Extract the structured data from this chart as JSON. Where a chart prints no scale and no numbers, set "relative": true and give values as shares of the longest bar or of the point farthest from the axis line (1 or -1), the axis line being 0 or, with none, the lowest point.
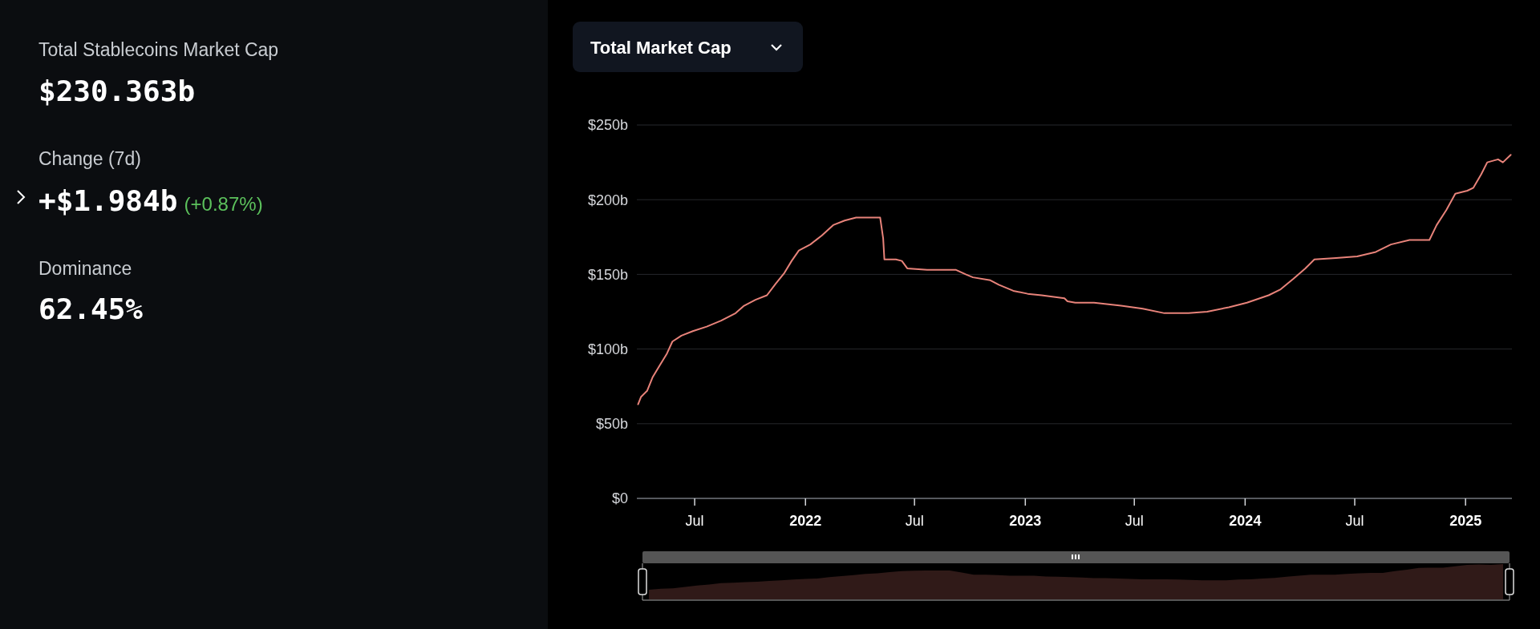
{
  "chart_data": [
    {
      "type": "other",
      "title": "Total Stablecoins Market Cap",
      "annotations": [
        "$230.363b",
        "Change (7d)",
        "+$1.984b",
        "(+0.87%)",
        "Dominance",
        "62.45%"
      ]
    },
    {
      "type": "line",
      "title": "Total Market Cap",
      "color": "#e8837a",
      "grid": "y",
      "x": [
        "2021-03-29",
        "2021-04-03",
        "2021-04-13",
        "2021-04-22",
        "2021-05-04",
        "2021-05-16",
        "2021-05-25",
        "2021-06-09",
        "2021-06-28",
        "2021-07-21",
        "2021-08-14",
        "2021-09-07",
        "2021-09-21",
        "2021-10-10",
        "2021-10-29",
        "2021-11-13",
        "2021-11-27",
        "2021-12-09",
        "2021-12-21",
        "2022-01-09",
        "2022-01-28",
        "2022-02-16",
        "2022-03-07",
        "2022-03-26",
        "2022-04-18",
        "2022-05-05",
        "2022-05-10",
        "2022-05-12",
        "2022-05-31",
        "2022-06-10",
        "2022-06-19",
        "2022-07-22",
        "2022-09-08",
        "2022-09-24",
        "2022-10-06",
        "2022-11-04",
        "2022-11-18",
        "2022-12-12",
        "2023-01-05",
        "2023-01-28",
        "2023-03-07",
        "2023-03-12",
        "2023-03-25",
        "2023-04-25",
        "2023-06-09",
        "2023-07-15",
        "2023-08-20",
        "2023-09-29",
        "2023-10-30",
        "2023-12-05",
        "2024-01-04",
        "2024-02-09",
        "2024-02-29",
        "2024-03-21",
        "2024-04-10",
        "2024-04-25",
        "2024-05-31",
        "2024-07-05",
        "2024-08-05",
        "2024-08-30",
        "2024-09-30",
        "2024-11-02",
        "2024-11-14",
        "2024-11-30",
        "2024-12-15",
        "2025-01-04",
        "2025-01-14",
        "2025-01-27",
        "2025-02-06",
        "2025-02-24",
        "2025-03-04",
        "2025-03-17"
      ],
      "values": [
        63,
        68,
        72,
        81,
        89,
        97,
        105,
        109,
        112,
        115,
        119,
        124,
        129,
        133,
        136,
        144,
        151,
        159,
        166,
        170,
        176,
        183,
        186,
        188,
        188,
        188,
        174,
        160,
        160,
        159,
        154,
        153,
        153,
        150,
        148,
        146,
        143,
        139,
        137,
        136,
        134,
        132,
        131,
        131,
        129,
        127,
        124,
        124,
        125,
        128,
        131,
        136,
        140,
        147,
        154,
        160,
        161,
        162,
        165,
        170,
        173,
        173,
        183,
        193,
        204,
        206,
        208,
        217,
        225,
        227,
        225,
        230
      ],
      "xlim": [
        "2021-03-27",
        "2025-03-19"
      ],
      "xticks": [
        {
          "value": "2021-07-01",
          "label": "Jul"
        },
        {
          "value": "2022-01-01",
          "label": "2022"
        },
        {
          "value": "2022-07-01",
          "label": "Jul"
        },
        {
          "value": "2023-01-01",
          "label": "2023"
        },
        {
          "value": "2023-07-01",
          "label": "Jul"
        },
        {
          "value": "2024-01-01",
          "label": "2024"
        },
        {
          "value": "2024-07-01",
          "label": "Jul"
        },
        {
          "value": "2025-01-01",
          "label": "2025"
        }
      ],
      "ylim": [
        0,
        250
      ],
      "yticks": [
        {
          "value": 0,
          "label": "$0"
        },
        {
          "value": 50,
          "label": "$50b"
        },
        {
          "value": 100,
          "label": "$100b"
        },
        {
          "value": 150,
          "label": "$150b"
        },
        {
          "value": 200,
          "label": "$200b"
        },
        {
          "value": 250,
          "label": "$250b"
        }
      ]
    },
    {
      "type": "area",
      "relative": true,
      "color": "#6a3a36",
      "categories": [
        null,
        null,
        null,
        null,
        null,
        null,
        null,
        null,
        null,
        null,
        null,
        null,
        null,
        null,
        null,
        null,
        null,
        null,
        null,
        null,
        null,
        null,
        null,
        null,
        null,
        null,
        null,
        null,
        null,
        null,
        null,
        null,
        null,
        null,
        null,
        null,
        null,
        null,
        null,
        null,
        null,
        null,
        null,
        null,
        null,
        null,
        null,
        null,
        null,
        null,
        null,
        null,
        null,
        null,
        null,
        null,
        null,
        null,
        null,
        null,
        null,
        null,
        null,
        null,
        null,
        null,
        null,
        null,
        null,
        null,
        null,
        null
      ],
      "values": [
        0.27,
        0.3,
        0.31,
        0.35,
        0.39,
        0.42,
        0.46,
        0.47,
        0.49,
        0.5,
        0.52,
        0.54,
        0.56,
        0.58,
        0.59,
        0.63,
        0.66,
        0.69,
        0.72,
        0.74,
        0.77,
        0.8,
        0.81,
        0.82,
        0.82,
        0.82,
        0.76,
        0.7,
        0.7,
        0.69,
        0.67,
        0.67,
        0.67,
        0.65,
        0.64,
        0.63,
        0.62,
        0.6,
        0.6,
        0.59,
        0.58,
        0.57,
        0.57,
        0.57,
        0.56,
        0.55,
        0.54,
        0.54,
        0.54,
        0.56,
        0.57,
        0.59,
        0.61,
        0.64,
        0.67,
        0.7,
        0.7,
        0.7,
        0.72,
        0.74,
        0.75,
        0.75,
        0.8,
        0.84,
        0.89,
        0.9,
        0.9,
        0.94,
        0.98,
        0.99,
        0.98,
        1
      ]
    }
  ]
}
